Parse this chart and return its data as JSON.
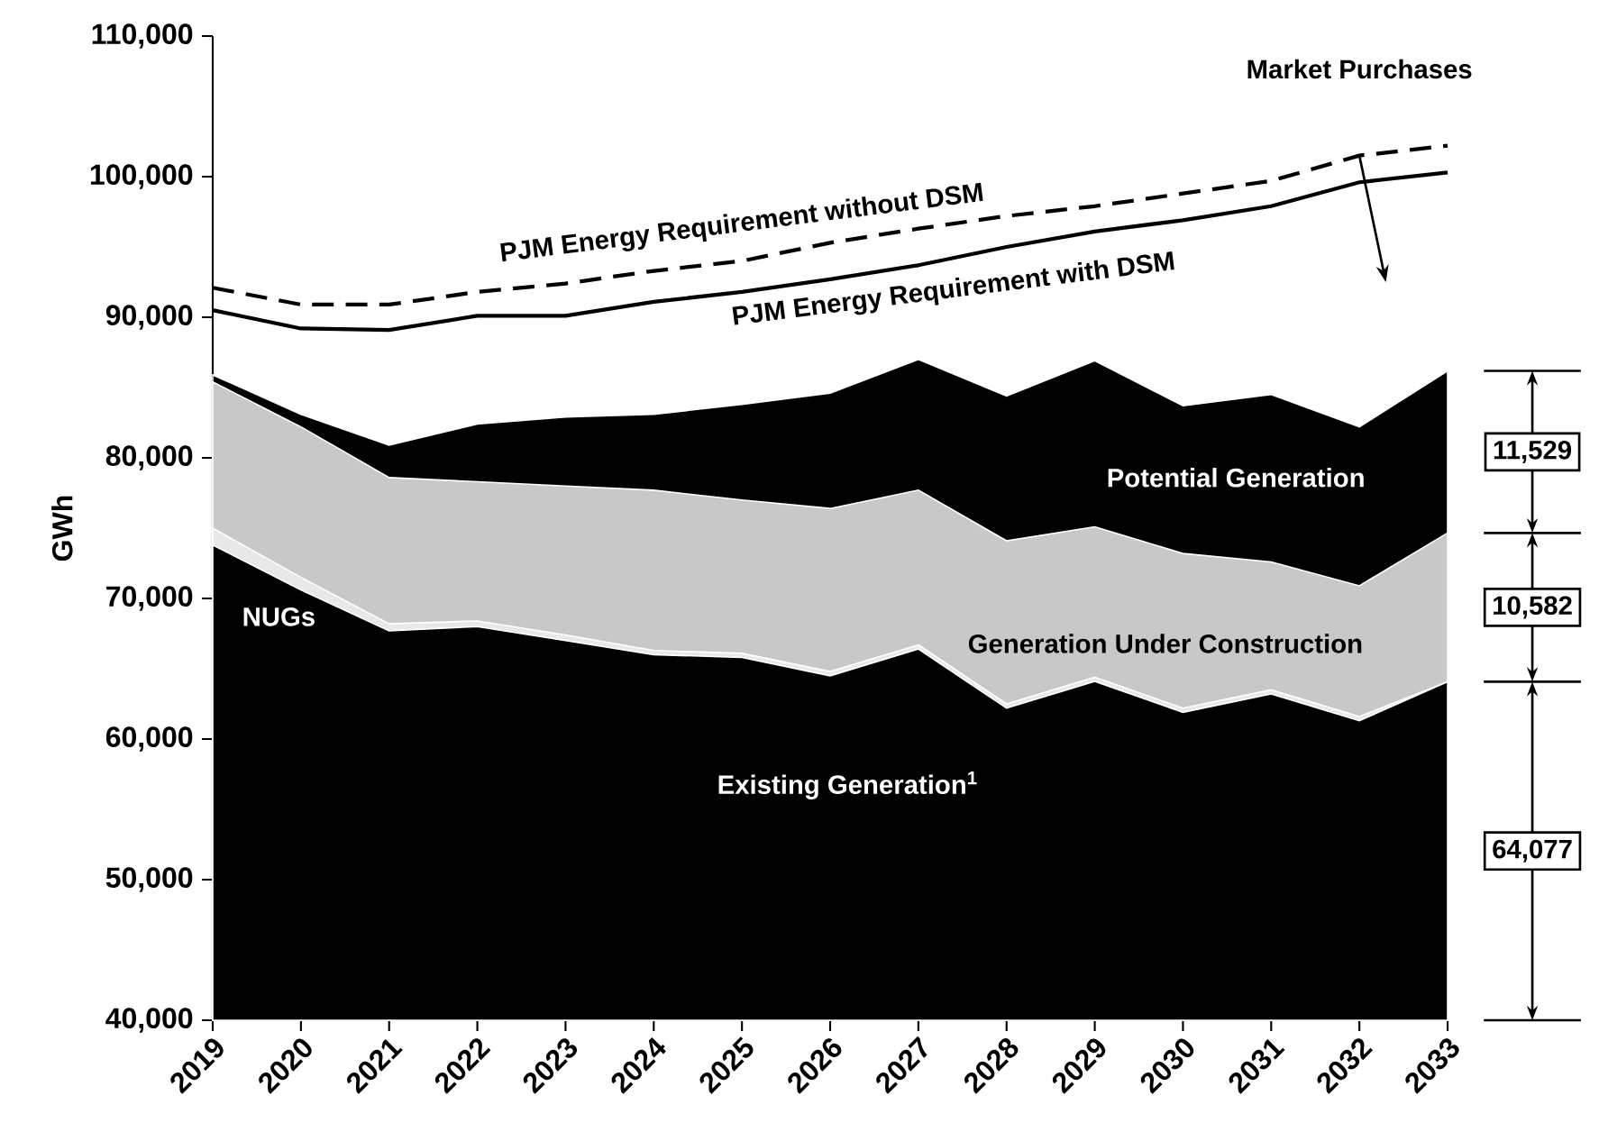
{
  "chart_data": {
    "type": "area",
    "ylabel": "GWh",
    "x": [
      2019,
      2020,
      2021,
      2022,
      2023,
      2024,
      2025,
      2026,
      2027,
      2028,
      2029,
      2030,
      2031,
      2032,
      2033
    ],
    "xlim": [
      2019,
      2033
    ],
    "xticks": [
      2019,
      2020,
      2021,
      2022,
      2023,
      2024,
      2025,
      2026,
      2027,
      2028,
      2029,
      2030,
      2031,
      2032,
      2033
    ],
    "ylim": [
      40000,
      110000
    ],
    "yticks": [
      {
        "value": 40000,
        "label": "40,000"
      },
      {
        "value": 50000,
        "label": "50,000"
      },
      {
        "value": 60000,
        "label": "60,000"
      },
      {
        "value": 70000,
        "label": "70,000"
      },
      {
        "value": 80000,
        "label": "80,000"
      },
      {
        "value": 90000,
        "label": "90,000"
      },
      {
        "value": 100000,
        "label": "100,000"
      },
      {
        "value": 110000,
        "label": "110,000"
      }
    ],
    "series": [
      {
        "name": "Existing Generation$^{1}$",
        "color": "#000000",
        "values": [
          73800,
          70600,
          67700,
          68000,
          67000,
          66000,
          65800,
          64500,
          66400,
          62200,
          64100,
          61900,
          63200,
          61300,
          64077
        ]
      },
      {
        "name": "NUGs",
        "color": "#e8e8e8",
        "values": [
          75000,
          71500,
          68200,
          68400,
          67400,
          66300,
          66100,
          64800,
          66700,
          62500,
          64400,
          62200,
          63500,
          61600,
          64077
        ]
      },
      {
        "name": "Generation Under Construction",
        "color": "#c8c8c8",
        "values": [
          85400,
          82200,
          78600,
          78300,
          78000,
          77700,
          77000,
          76400,
          77700,
          74100,
          75100,
          73200,
          72600,
          70900,
          74659
        ]
      },
      {
        "name": "Potential Generation",
        "color": "#000000",
        "values": [
          85900,
          83100,
          80900,
          82400,
          82900,
          83100,
          83800,
          84600,
          87000,
          84400,
          86900,
          83700,
          84500,
          82200,
          86188
        ]
      },
      {
        "name": "PJM Energy Requirement without DSM",
        "type": "line",
        "line_style": "dashed",
        "color": "#000000",
        "values": [
          92100,
          90900,
          90900,
          91800,
          92400,
          93300,
          94000,
          95300,
          96300,
          97200,
          97900,
          98800,
          99700,
          101500,
          102200
        ]
      },
      {
        "name": "PJM Energy Requirement with DSM",
        "type": "line",
        "line_style": "solid",
        "color": "#000000",
        "values": [
          90500,
          89200,
          89100,
          90100,
          90100,
          91100,
          91800,
          92700,
          93700,
          95000,
          96100,
          96900,
          97900,
          99600,
          100300
        ]
      }
    ],
    "annotations": [
      {
        "text": "Market Purchases",
        "x": 2032,
        "y": 101500
      },
      "11,529",
      "10,582",
      "64,077"
    ]
  }
}
